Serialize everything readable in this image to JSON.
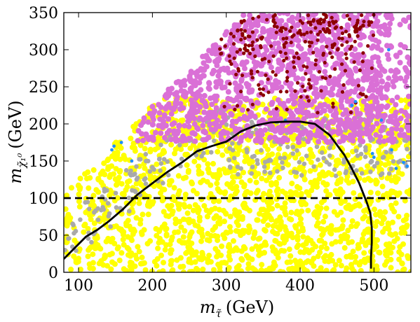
{
  "chart_data": {
    "type": "scatter",
    "xlabel": {
      "main": "m",
      "sub": "τ̃",
      "unit": "(GeV)"
    },
    "ylabel": {
      "main": "m",
      "sub": "χ̃₁⁰",
      "unit": "(GeV)"
    },
    "xlim": [
      80,
      550
    ],
    "ylim": [
      0,
      350
    ],
    "xticks": [
      100,
      200,
      300,
      400,
      500
    ],
    "yticks": [
      0,
      50,
      100,
      150,
      200,
      250,
      300,
      350
    ],
    "grid": false,
    "legend": "none",
    "colors": {
      "yellow": "#ffff00",
      "gray": "#a9a9a9",
      "violet": "#da70d6",
      "darkred": "#8b0000",
      "blue": "#1e90ff",
      "limit_curve": "#000000",
      "reference_line": "#000000"
    },
    "point_regions": [
      {
        "color": "violet",
        "y_range": [
          180,
          350
        ],
        "description_visible": false
      },
      {
        "color": "darkred",
        "x_range": [
          300,
          500
        ],
        "y_range": [
          220,
          350
        ]
      },
      {
        "color": "gray",
        "band_along": "limit_curve",
        "y_range": [
          0,
          215
        ]
      },
      {
        "color": "yellow",
        "y_range": [
          0,
          230
        ]
      }
    ],
    "series": [
      {
        "style": "solid",
        "color": "limit_curve",
        "x": [
          80,
          95,
          110,
          125,
          140,
          160,
          180,
          200,
          220,
          240,
          260,
          280,
          300,
          320,
          340,
          360,
          380,
          400,
          420,
          440,
          460,
          470,
          480,
          490,
          495,
          497,
          497,
          496,
          496
        ],
        "y": [
          18,
          33,
          48,
          57,
          68,
          85,
          105,
          120,
          135,
          148,
          163,
          170,
          176,
          190,
          198,
          202,
          203,
          203,
          200,
          185,
          158,
          140,
          120,
          95,
          80,
          60,
          40,
          20,
          5
        ]
      },
      {
        "style": "dashed",
        "color": "reference_line",
        "x": [
          80,
          550
        ],
        "y": [
          100,
          100
        ]
      }
    ]
  }
}
